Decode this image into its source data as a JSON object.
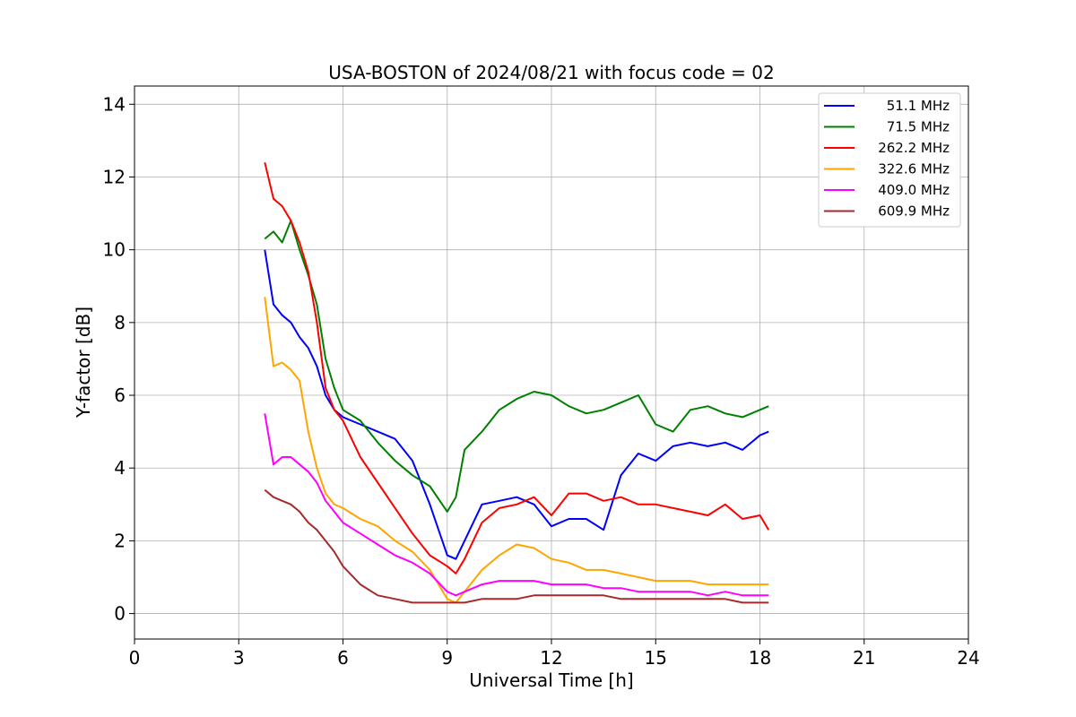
{
  "chart_data": {
    "type": "line",
    "title": "USA-BOSTON of 2024/08/21 with focus code = 02",
    "xlabel": "Universal Time [h]",
    "ylabel": "Y-factor [dB]",
    "xlim": [
      0,
      24
    ],
    "ylim": [
      -0.7,
      14.5
    ],
    "xticks": [
      "0",
      "3",
      "6",
      "9",
      "12",
      "15",
      "18",
      "21",
      "24"
    ],
    "yticks": [
      "0",
      "2",
      "4",
      "6",
      "8",
      "10",
      "12",
      "14"
    ],
    "grid": true,
    "legend_position": "top-right",
    "series": [
      {
        "name": "51.1 MHz",
        "color": "#0000ff",
        "x": [
          3.75,
          4.0,
          4.25,
          4.5,
          4.75,
          5.0,
          5.25,
          5.5,
          5.75,
          6.0,
          6.5,
          7.0,
          7.5,
          8.0,
          8.5,
          9.0,
          9.25,
          9.5,
          10.0,
          10.5,
          11.0,
          11.5,
          12.0,
          12.5,
          13.0,
          13.5,
          14.0,
          14.5,
          15.0,
          15.5,
          16.0,
          16.5,
          17.0,
          17.5,
          18.0,
          18.25
        ],
        "y": [
          10.0,
          8.5,
          8.2,
          8.0,
          7.6,
          7.3,
          6.8,
          6.0,
          5.6,
          5.4,
          5.2,
          5.0,
          4.8,
          4.2,
          3.0,
          1.6,
          1.5,
          2.0,
          3.0,
          3.1,
          3.2,
          3.0,
          2.4,
          2.6,
          2.6,
          2.3,
          3.8,
          4.4,
          4.2,
          4.6,
          4.7,
          4.6,
          4.7,
          4.5,
          4.9,
          5.0
        ]
      },
      {
        "name": "71.5 MHz",
        "color": "#008000",
        "x": [
          3.75,
          4.0,
          4.25,
          4.5,
          4.75,
          5.0,
          5.25,
          5.5,
          5.75,
          6.0,
          6.5,
          7.0,
          7.5,
          8.0,
          8.5,
          9.0,
          9.25,
          9.5,
          10.0,
          10.5,
          11.0,
          11.5,
          12.0,
          12.5,
          13.0,
          13.5,
          14.0,
          14.5,
          15.0,
          15.5,
          16.0,
          16.5,
          17.0,
          17.5,
          18.0,
          18.25
        ],
        "y": [
          10.3,
          10.5,
          10.2,
          10.8,
          10.0,
          9.3,
          8.5,
          7.0,
          6.2,
          5.6,
          5.3,
          4.7,
          4.2,
          3.8,
          3.5,
          2.8,
          3.2,
          4.5,
          5.0,
          5.6,
          5.9,
          6.1,
          6.0,
          5.7,
          5.5,
          5.6,
          5.8,
          6.0,
          5.2,
          5.0,
          5.6,
          5.7,
          5.5,
          5.4,
          5.6,
          5.7
        ]
      },
      {
        "name": "262.2 MHz",
        "color": "#ff0000",
        "x": [
          3.75,
          4.0,
          4.25,
          4.5,
          4.75,
          5.0,
          5.25,
          5.5,
          5.75,
          6.0,
          6.5,
          7.0,
          7.5,
          8.0,
          8.5,
          9.0,
          9.25,
          9.5,
          10.0,
          10.5,
          11.0,
          11.5,
          12.0,
          12.5,
          13.0,
          13.5,
          14.0,
          14.5,
          15.0,
          15.5,
          16.0,
          16.5,
          17.0,
          17.5,
          18.0,
          18.25
        ],
        "y": [
          12.4,
          11.4,
          11.2,
          10.8,
          10.2,
          9.4,
          8.0,
          6.2,
          5.6,
          5.3,
          4.3,
          3.6,
          2.9,
          2.2,
          1.6,
          1.3,
          1.1,
          1.5,
          2.5,
          2.9,
          3.0,
          3.2,
          2.7,
          3.3,
          3.3,
          3.1,
          3.2,
          3.0,
          3.0,
          2.9,
          2.8,
          2.7,
          3.0,
          2.6,
          2.7,
          2.3
        ]
      },
      {
        "name": "322.6 MHz",
        "color": "#ffa500",
        "x": [
          3.75,
          4.0,
          4.25,
          4.5,
          4.75,
          5.0,
          5.25,
          5.5,
          5.75,
          6.0,
          6.5,
          7.0,
          7.5,
          8.0,
          8.5,
          9.0,
          9.25,
          9.5,
          10.0,
          10.5,
          11.0,
          11.5,
          12.0,
          12.5,
          13.0,
          13.5,
          14.0,
          14.5,
          15.0,
          15.5,
          16.0,
          16.5,
          17.0,
          17.5,
          18.0,
          18.25
        ],
        "y": [
          8.7,
          6.8,
          6.9,
          6.7,
          6.4,
          5.0,
          4.0,
          3.3,
          3.0,
          2.9,
          2.6,
          2.4,
          2.0,
          1.7,
          1.2,
          0.4,
          0.3,
          0.6,
          1.2,
          1.6,
          1.9,
          1.8,
          1.5,
          1.4,
          1.2,
          1.2,
          1.1,
          1.0,
          0.9,
          0.9,
          0.9,
          0.8,
          0.8,
          0.8,
          0.8,
          0.8
        ]
      },
      {
        "name": "409.0 MHz",
        "color": "#ff00ff",
        "x": [
          3.75,
          4.0,
          4.25,
          4.5,
          4.75,
          5.0,
          5.25,
          5.5,
          5.75,
          6.0,
          6.5,
          7.0,
          7.5,
          8.0,
          8.5,
          9.0,
          9.25,
          9.5,
          10.0,
          10.5,
          11.0,
          11.5,
          12.0,
          12.5,
          13.0,
          13.5,
          14.0,
          14.5,
          15.0,
          15.5,
          16.0,
          16.5,
          17.0,
          17.5,
          18.0,
          18.25
        ],
        "y": [
          5.5,
          4.1,
          4.3,
          4.3,
          4.1,
          3.9,
          3.6,
          3.1,
          2.8,
          2.5,
          2.2,
          1.9,
          1.6,
          1.4,
          1.1,
          0.6,
          0.5,
          0.6,
          0.8,
          0.9,
          0.9,
          0.9,
          0.8,
          0.8,
          0.8,
          0.7,
          0.7,
          0.6,
          0.6,
          0.6,
          0.6,
          0.5,
          0.6,
          0.5,
          0.5,
          0.5
        ]
      },
      {
        "name": "609.9 MHz",
        "color": "#a52a2a",
        "x": [
          3.75,
          4.0,
          4.25,
          4.5,
          4.75,
          5.0,
          5.25,
          5.5,
          5.75,
          6.0,
          6.5,
          7.0,
          7.5,
          8.0,
          8.5,
          9.0,
          9.25,
          9.5,
          10.0,
          10.5,
          11.0,
          11.5,
          12.0,
          12.5,
          13.0,
          13.5,
          14.0,
          14.5,
          15.0,
          15.5,
          16.0,
          16.5,
          17.0,
          17.5,
          18.0,
          18.25
        ],
        "y": [
          3.4,
          3.2,
          3.1,
          3.0,
          2.8,
          2.5,
          2.3,
          2.0,
          1.7,
          1.3,
          0.8,
          0.5,
          0.4,
          0.3,
          0.3,
          0.3,
          0.3,
          0.3,
          0.4,
          0.4,
          0.4,
          0.5,
          0.5,
          0.5,
          0.5,
          0.5,
          0.4,
          0.4,
          0.4,
          0.4,
          0.4,
          0.4,
          0.4,
          0.3,
          0.3,
          0.3
        ]
      }
    ]
  }
}
